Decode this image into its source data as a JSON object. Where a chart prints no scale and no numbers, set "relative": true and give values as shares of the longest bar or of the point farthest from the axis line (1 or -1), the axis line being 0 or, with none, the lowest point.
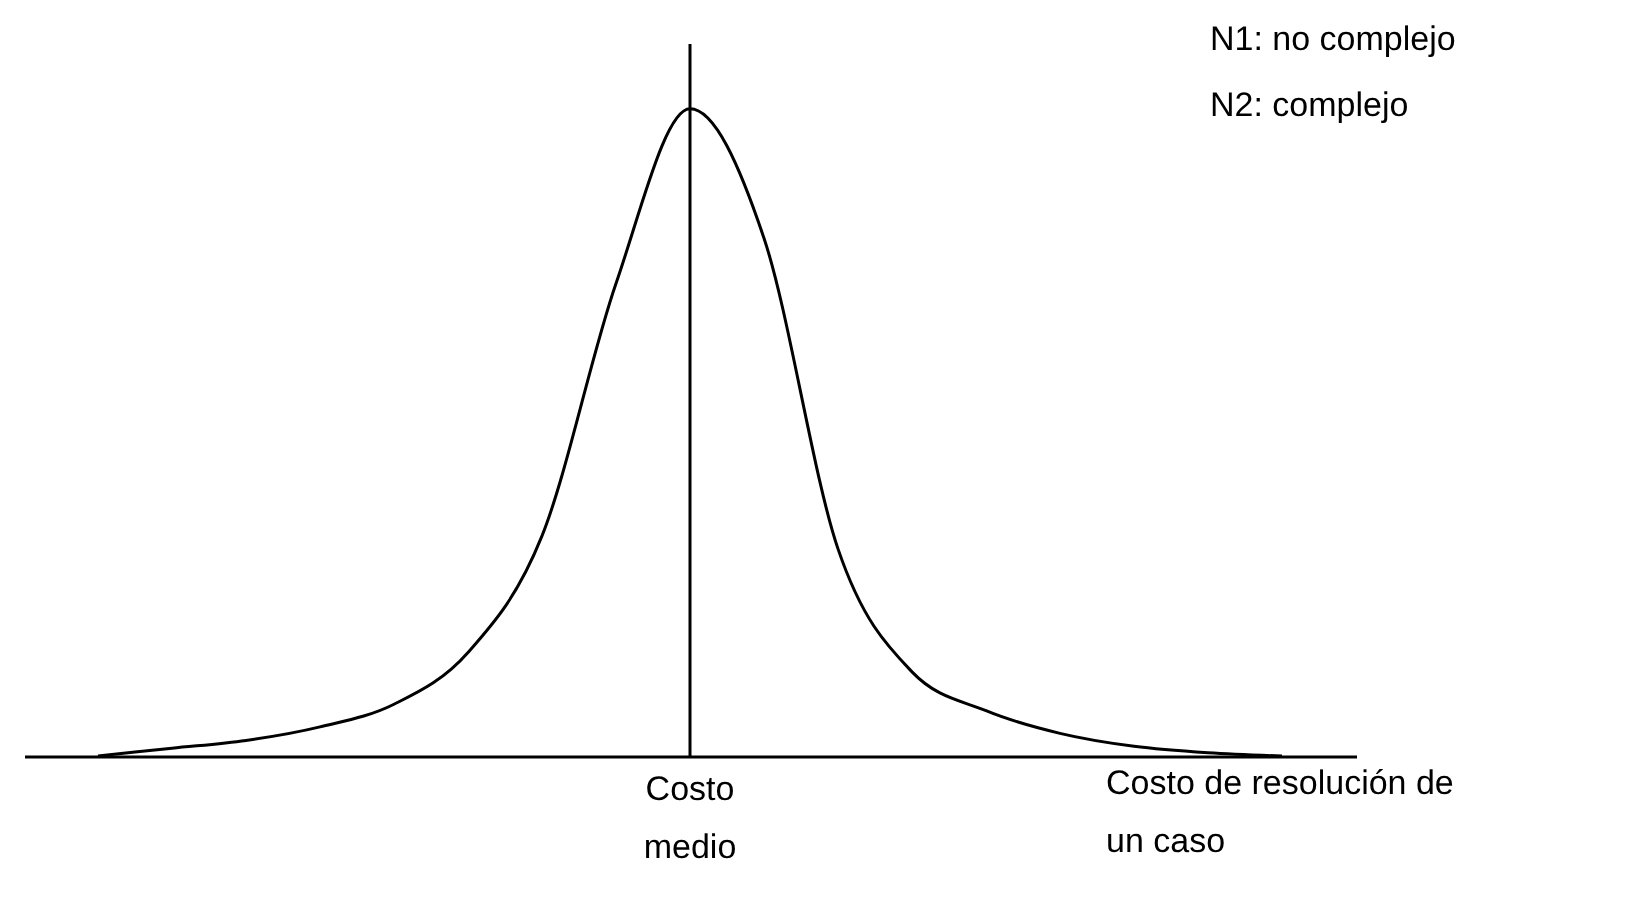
{
  "chart_data": {
    "type": "line",
    "relative": true,
    "xlabel": "Costo de resolución de un caso",
    "categories": [
      null,
      null,
      null,
      null,
      null,
      null,
      null,
      null,
      null,
      null,
      null,
      null,
      null,
      null,
      null,
      null,
      null
    ],
    "series": [
      {
        "color": "#000000",
        "values": [
          0,
          0.012,
          0.024,
          0.045,
          0.08,
          0.16,
          0.34,
          0.73,
          1.0,
          0.8,
          0.32,
          0.13,
          0.07,
          0.035,
          0.015,
          0.005,
          0
        ]
      }
    ],
    "annotations": [
      "N1: no complejo",
      "N2: complejo",
      {
        "text": "Costo medio"
      }
    ],
    "legend": false,
    "marker": "none",
    "line_style": "solid"
  }
}
